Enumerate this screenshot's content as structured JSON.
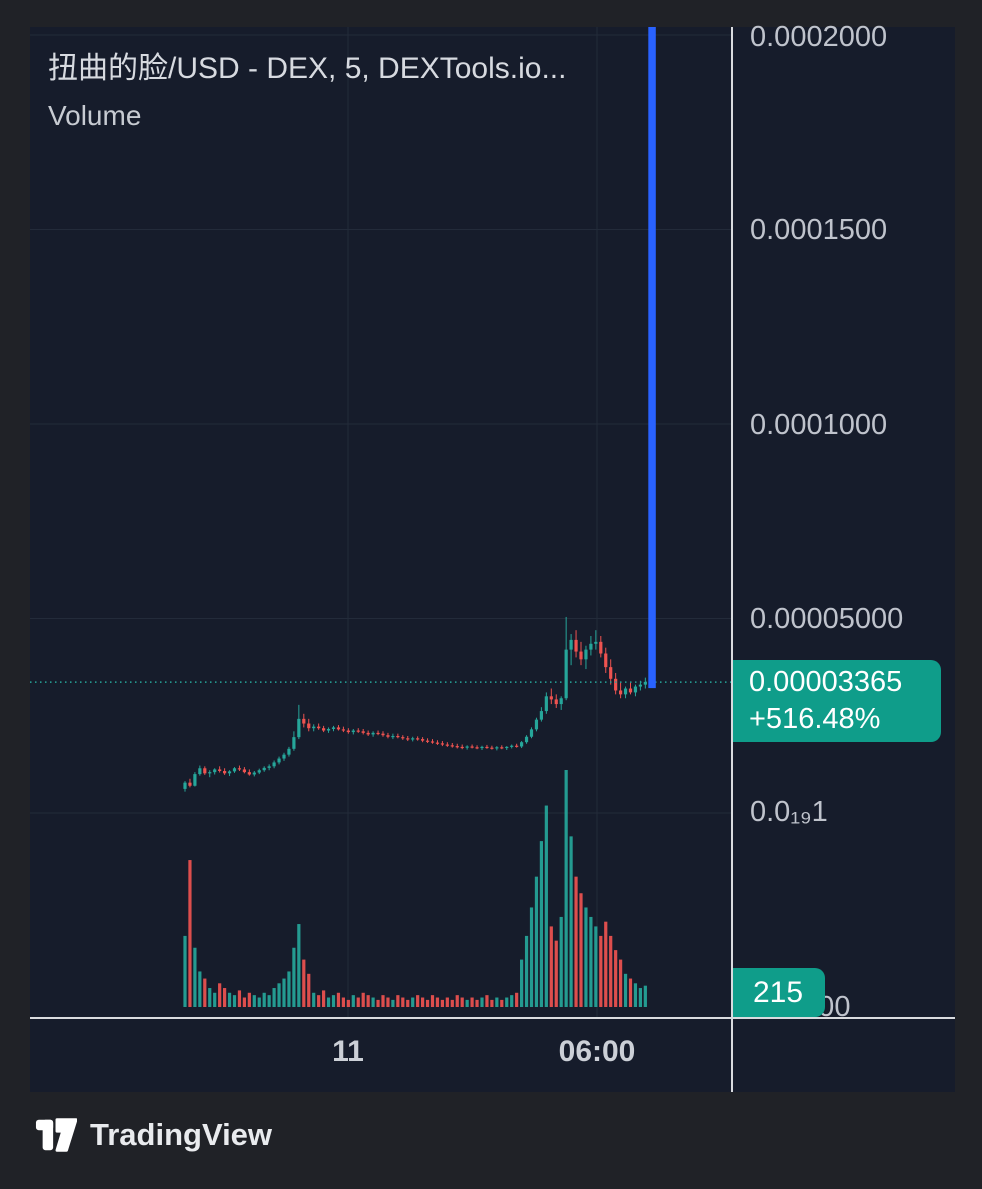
{
  "header": {
    "title": "扭曲的脸/USD - DEX, 5, DEXTools.io...",
    "indicator_label": "Volume"
  },
  "price_scale": {
    "labels": [
      {
        "text": "0.0002000"
      },
      {
        "text": "0.0001500"
      },
      {
        "text": "0.0001000"
      },
      {
        "text": "0.00005000"
      },
      {
        "text": "0.0₁₉1"
      },
      {
        "text": "0.00"
      }
    ],
    "price_badge": {
      "price": "0.00003365",
      "change": "+516.48%"
    },
    "volume_badge": "215"
  },
  "time_scale": {
    "labels": [
      {
        "text": "11"
      },
      {
        "text": "06:00"
      }
    ]
  },
  "footer": {
    "brand": "TradingView"
  },
  "colors": {
    "badge": "#0f9d8a",
    "up": "#26a69a",
    "down": "#ef5350"
  },
  "chart_data": {
    "type": "candlestick",
    "title": "扭曲的脸/USD - DEX, 5, DEXTools.io...",
    "interval_minutes": 5,
    "price_unit_multiplier": 1e-05,
    "y_axis": {
      "tick_labels": [
        "0.0002000",
        "0.0001500",
        "0.0001000",
        "0.00005000",
        "0.0₁₉1"
      ],
      "tick_values_units": [
        20,
        15,
        10,
        5,
        0
      ],
      "volume_zero_label": "0.00"
    },
    "x_axis": {
      "tick_labels": [
        "11",
        "06:00"
      ]
    },
    "current_price": "0.00003365",
    "current_price_units": 3.365,
    "change_percent": "+516.48%",
    "current_volume": "215",
    "has_offscale_spike": true,
    "colors": {
      "up": "#26a69a",
      "down": "#ef5350",
      "spike": "#2962ff",
      "grid": "#232b3a",
      "current_price_line": "#26a69a"
    },
    "candles": [
      [
        0.62,
        0.82,
        0.55,
        0.78
      ],
      [
        0.78,
        0.88,
        0.66,
        0.7
      ],
      [
        0.7,
        1.05,
        0.68,
        1.0
      ],
      [
        1.0,
        1.22,
        0.96,
        1.15
      ],
      [
        1.15,
        1.2,
        0.98,
        1.02
      ],
      [
        1.02,
        1.1,
        0.92,
        1.05
      ],
      [
        1.05,
        1.15,
        0.99,
        1.12
      ],
      [
        1.12,
        1.2,
        1.04,
        1.08
      ],
      [
        1.08,
        1.15,
        0.98,
        1.02
      ],
      [
        1.02,
        1.1,
        0.95,
        1.07
      ],
      [
        1.07,
        1.18,
        1.03,
        1.15
      ],
      [
        1.15,
        1.22,
        1.08,
        1.12
      ],
      [
        1.12,
        1.18,
        1.02,
        1.05
      ],
      [
        1.05,
        1.12,
        0.96,
        0.99
      ],
      [
        0.99,
        1.08,
        0.94,
        1.04
      ],
      [
        1.04,
        1.14,
        1.0,
        1.1
      ],
      [
        1.1,
        1.2,
        1.06,
        1.16
      ],
      [
        1.16,
        1.25,
        1.1,
        1.2
      ],
      [
        1.2,
        1.35,
        1.15,
        1.3
      ],
      [
        1.3,
        1.45,
        1.25,
        1.4
      ],
      [
        1.4,
        1.55,
        1.34,
        1.5
      ],
      [
        1.5,
        1.7,
        1.45,
        1.65
      ],
      [
        1.65,
        2.1,
        1.6,
        1.95
      ],
      [
        1.95,
        2.78,
        1.9,
        2.42
      ],
      [
        2.42,
        2.55,
        2.2,
        2.3
      ],
      [
        2.3,
        2.42,
        2.1,
        2.18
      ],
      [
        2.18,
        2.28,
        2.1,
        2.22
      ],
      [
        2.22,
        2.3,
        2.14,
        2.18
      ],
      [
        2.18,
        2.24,
        2.08,
        2.12
      ],
      [
        2.12,
        2.2,
        2.06,
        2.16
      ],
      [
        2.16,
        2.24,
        2.1,
        2.2
      ],
      [
        2.2,
        2.26,
        2.12,
        2.15
      ],
      [
        2.15,
        2.22,
        2.08,
        2.12
      ],
      [
        2.12,
        2.18,
        2.04,
        2.08
      ],
      [
        2.08,
        2.16,
        2.02,
        2.12
      ],
      [
        2.12,
        2.18,
        2.06,
        2.1
      ],
      [
        2.1,
        2.16,
        2.02,
        2.06
      ],
      [
        2.06,
        2.12,
        1.98,
        2.02
      ],
      [
        2.02,
        2.1,
        1.96,
        2.06
      ],
      [
        2.06,
        2.12,
        2.0,
        2.04
      ],
      [
        2.04,
        2.1,
        1.96,
        2.0
      ],
      [
        2.0,
        2.06,
        1.92,
        1.96
      ],
      [
        1.96,
        2.04,
        1.9,
        1.98
      ],
      [
        1.98,
        2.04,
        1.92,
        1.95
      ],
      [
        1.95,
        2.0,
        1.88,
        1.92
      ],
      [
        1.92,
        1.98,
        1.85,
        1.89
      ],
      [
        1.89,
        1.96,
        1.84,
        1.92
      ],
      [
        1.92,
        1.97,
        1.86,
        1.9
      ],
      [
        1.9,
        1.95,
        1.82,
        1.86
      ],
      [
        1.86,
        1.92,
        1.8,
        1.84
      ],
      [
        1.84,
        1.9,
        1.78,
        1.81
      ],
      [
        1.81,
        1.87,
        1.75,
        1.79
      ],
      [
        1.79,
        1.85,
        1.72,
        1.76
      ],
      [
        1.76,
        1.82,
        1.7,
        1.74
      ],
      [
        1.74,
        1.8,
        1.68,
        1.72
      ],
      [
        1.72,
        1.78,
        1.66,
        1.7
      ],
      [
        1.7,
        1.76,
        1.64,
        1.68
      ],
      [
        1.68,
        1.74,
        1.63,
        1.71
      ],
      [
        1.71,
        1.76,
        1.66,
        1.69
      ],
      [
        1.69,
        1.74,
        1.64,
        1.67
      ],
      [
        1.67,
        1.73,
        1.62,
        1.7
      ],
      [
        1.7,
        1.75,
        1.65,
        1.68
      ],
      [
        1.68,
        1.73,
        1.63,
        1.66
      ],
      [
        1.66,
        1.72,
        1.61,
        1.69
      ],
      [
        1.69,
        1.74,
        1.64,
        1.67
      ],
      [
        1.67,
        1.72,
        1.62,
        1.7
      ],
      [
        1.7,
        1.76,
        1.66,
        1.73
      ],
      [
        1.73,
        1.78,
        1.68,
        1.71
      ],
      [
        1.71,
        1.85,
        1.67,
        1.82
      ],
      [
        1.82,
        2.0,
        1.78,
        1.96
      ],
      [
        1.96,
        2.2,
        1.92,
        2.15
      ],
      [
        2.15,
        2.45,
        2.1,
        2.4
      ],
      [
        2.4,
        2.72,
        2.35,
        2.62
      ],
      [
        2.62,
        3.1,
        2.55,
        3.0
      ],
      [
        3.0,
        3.2,
        2.8,
        2.92
      ],
      [
        2.92,
        3.05,
        2.7,
        2.8
      ],
      [
        2.8,
        3.0,
        2.65,
        2.95
      ],
      [
        2.95,
        5.04,
        2.9,
        4.2
      ],
      [
        4.2,
        4.6,
        3.8,
        4.45
      ],
      [
        4.45,
        4.7,
        4.0,
        4.15
      ],
      [
        4.15,
        4.4,
        3.8,
        3.95
      ],
      [
        3.95,
        4.3,
        3.7,
        4.2
      ],
      [
        4.2,
        4.55,
        4.05,
        4.35
      ],
      [
        4.35,
        4.7,
        4.2,
        4.4
      ],
      [
        4.4,
        4.55,
        4.0,
        4.1
      ],
      [
        4.1,
        4.25,
        3.6,
        3.75
      ],
      [
        3.75,
        3.95,
        3.3,
        3.45
      ],
      [
        3.45,
        3.6,
        3.05,
        3.15
      ],
      [
        3.15,
        3.35,
        2.95,
        3.05
      ],
      [
        3.05,
        3.25,
        2.95,
        3.2
      ],
      [
        3.2,
        3.35,
        3.05,
        3.1
      ],
      [
        3.1,
        3.3,
        3.0,
        3.25
      ],
      [
        3.25,
        3.4,
        3.15,
        3.3
      ],
      [
        3.3,
        3.48,
        3.2,
        3.37
      ]
    ],
    "volumes": [
      30,
      62,
      25,
      15,
      12,
      8,
      6,
      10,
      8,
      6,
      5,
      7,
      4,
      6,
      5,
      4,
      6,
      5,
      8,
      10,
      12,
      15,
      25,
      35,
      20,
      14,
      6,
      5,
      7,
      4,
      5,
      6,
      4,
      3,
      5,
      4,
      6,
      5,
      4,
      3,
      5,
      4,
      3,
      5,
      4,
      3,
      4,
      5,
      4,
      3,
      5,
      4,
      3,
      4,
      3,
      5,
      4,
      3,
      4,
      3,
      4,
      5,
      3,
      4,
      3,
      4,
      5,
      6,
      20,
      30,
      42,
      55,
      70,
      85,
      34,
      28,
      38,
      100,
      72,
      55,
      48,
      42,
      38,
      34,
      30,
      36,
      30,
      24,
      20,
      14,
      12,
      10,
      8,
      9
    ]
  }
}
